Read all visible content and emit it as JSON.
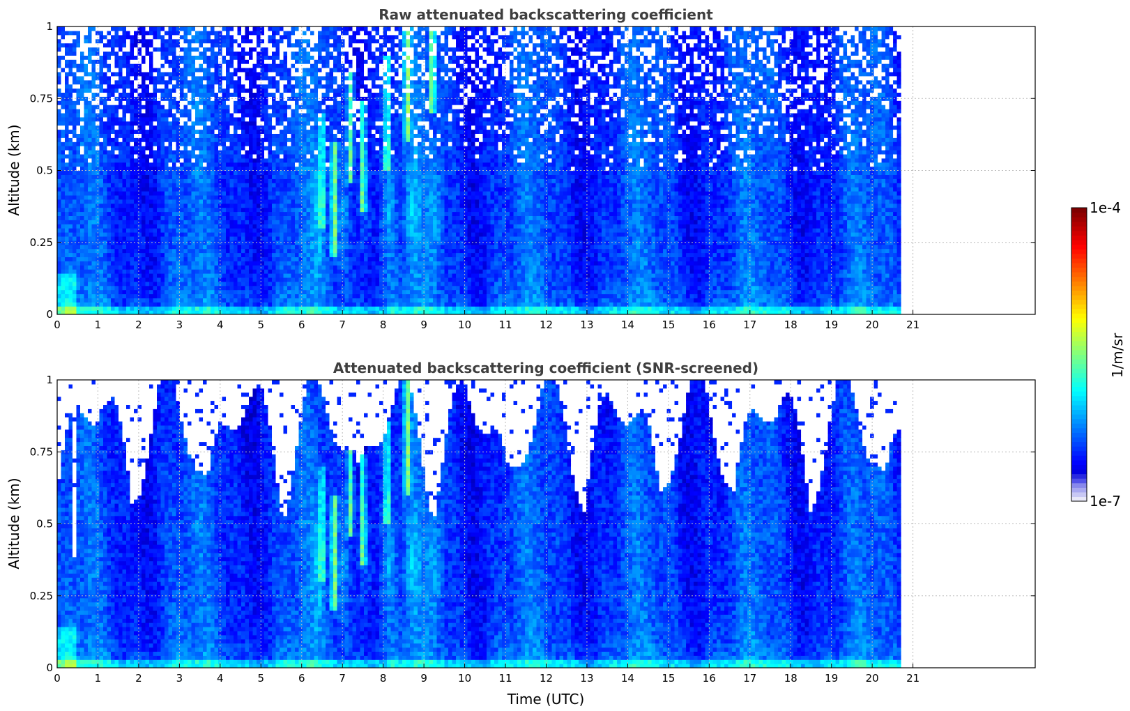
{
  "chart_data": [
    {
      "type": "heatmap",
      "title": "Raw attenuated backscattering coefficient",
      "xlabel": "",
      "ylabel": "Altitude (km)",
      "xlim": [
        0,
        24
      ],
      "ylim": [
        0,
        1
      ],
      "data_end_hour": 20.7,
      "xticks": [
        "0",
        "1",
        "2",
        "3",
        "4",
        "5",
        "6",
        "7",
        "8",
        "9",
        "10",
        "11",
        "12",
        "13",
        "14",
        "15",
        "16",
        "17",
        "18",
        "19",
        "20",
        "21"
      ],
      "yticks": [
        "0",
        "0.25",
        "0.5",
        "0.75",
        "1"
      ],
      "grid": true,
      "screened": false
    },
    {
      "type": "heatmap",
      "title": "Attenuated backscattering coefficient (SNR-screened)",
      "xlabel": "Time (UTC)",
      "ylabel": "Altitude (km)",
      "xlim": [
        0,
        24
      ],
      "ylim": [
        0,
        1
      ],
      "data_end_hour": 20.7,
      "xticks": [
        "0",
        "1",
        "2",
        "3",
        "4",
        "5",
        "6",
        "7",
        "8",
        "9",
        "10",
        "11",
        "12",
        "13",
        "14",
        "15",
        "16",
        "17",
        "18",
        "19",
        "20",
        "21"
      ],
      "yticks": [
        "0",
        "0.25",
        "0.5",
        "0.75",
        "1"
      ],
      "grid": true,
      "screened": true
    }
  ],
  "colorbar": {
    "label": "1/m/sr",
    "min_label": "1e-7",
    "max_label": "1e-4",
    "colormap": "jet",
    "low_color": "#e8e8f8",
    "high_color": "#800000"
  }
}
